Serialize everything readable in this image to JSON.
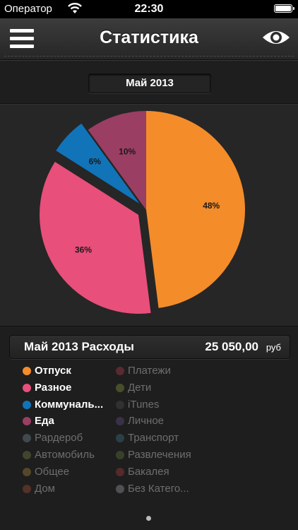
{
  "status_bar": {
    "carrier": "Оператор",
    "time": "22:30"
  },
  "nav": {
    "title": "Статистика"
  },
  "period": {
    "label": "Май 2013"
  },
  "pie": {
    "slices": [
      {
        "name": "Отпуск",
        "percent": 48,
        "label": "48%",
        "color": "#f48c2a",
        "offset": 0
      },
      {
        "name": "Разное",
        "percent": 36,
        "label": "36%",
        "color": "#e84f7b",
        "offset": 1
      },
      {
        "name": "Коммунальные",
        "percent": 6,
        "label": "6%",
        "color": "#1174b8",
        "offset": 1
      },
      {
        "name": "Еда",
        "percent": 10,
        "label": "10%",
        "color": "#9b3e63",
        "offset": 0
      }
    ]
  },
  "summary": {
    "title": "Май 2013 Расходы",
    "amount": "25 050,00",
    "currency": "руб"
  },
  "legend": {
    "left": [
      {
        "label": "Отпуск",
        "color": "#f48c2a",
        "active": true
      },
      {
        "label": "Разное",
        "color": "#e84f7b",
        "active": true
      },
      {
        "label": "Коммуналь...",
        "color": "#1174b8",
        "active": true
      },
      {
        "label": "Еда",
        "color": "#9b3e63",
        "active": true
      },
      {
        "label": "Рардероб",
        "color": "#6a7f8a",
        "active": false
      },
      {
        "label": "Автомобиль",
        "color": "#6c7542",
        "active": false
      },
      {
        "label": "Общее",
        "color": "#9a7a3a",
        "active": false
      },
      {
        "label": "Дом",
        "color": "#9a4a34",
        "active": false
      }
    ],
    "right": [
      {
        "label": "Платежи",
        "color": "#a13a4a",
        "active": false
      },
      {
        "label": "Дети",
        "color": "#7f8a3a",
        "active": false
      },
      {
        "label": "iTunes",
        "color": "#4a4a4a",
        "active": false
      },
      {
        "label": "Личное",
        "color": "#5a4a7a",
        "active": false
      },
      {
        "label": "Транспорт",
        "color": "#3a6a7a",
        "active": false
      },
      {
        "label": "Развлечения",
        "color": "#5a6a3a",
        "active": false
      },
      {
        "label": "Бакалея",
        "color": "#9a3a3a",
        "active": false
      },
      {
        "label": "Без Катего...",
        "color": "#8a8f96",
        "active": false
      }
    ]
  }
}
